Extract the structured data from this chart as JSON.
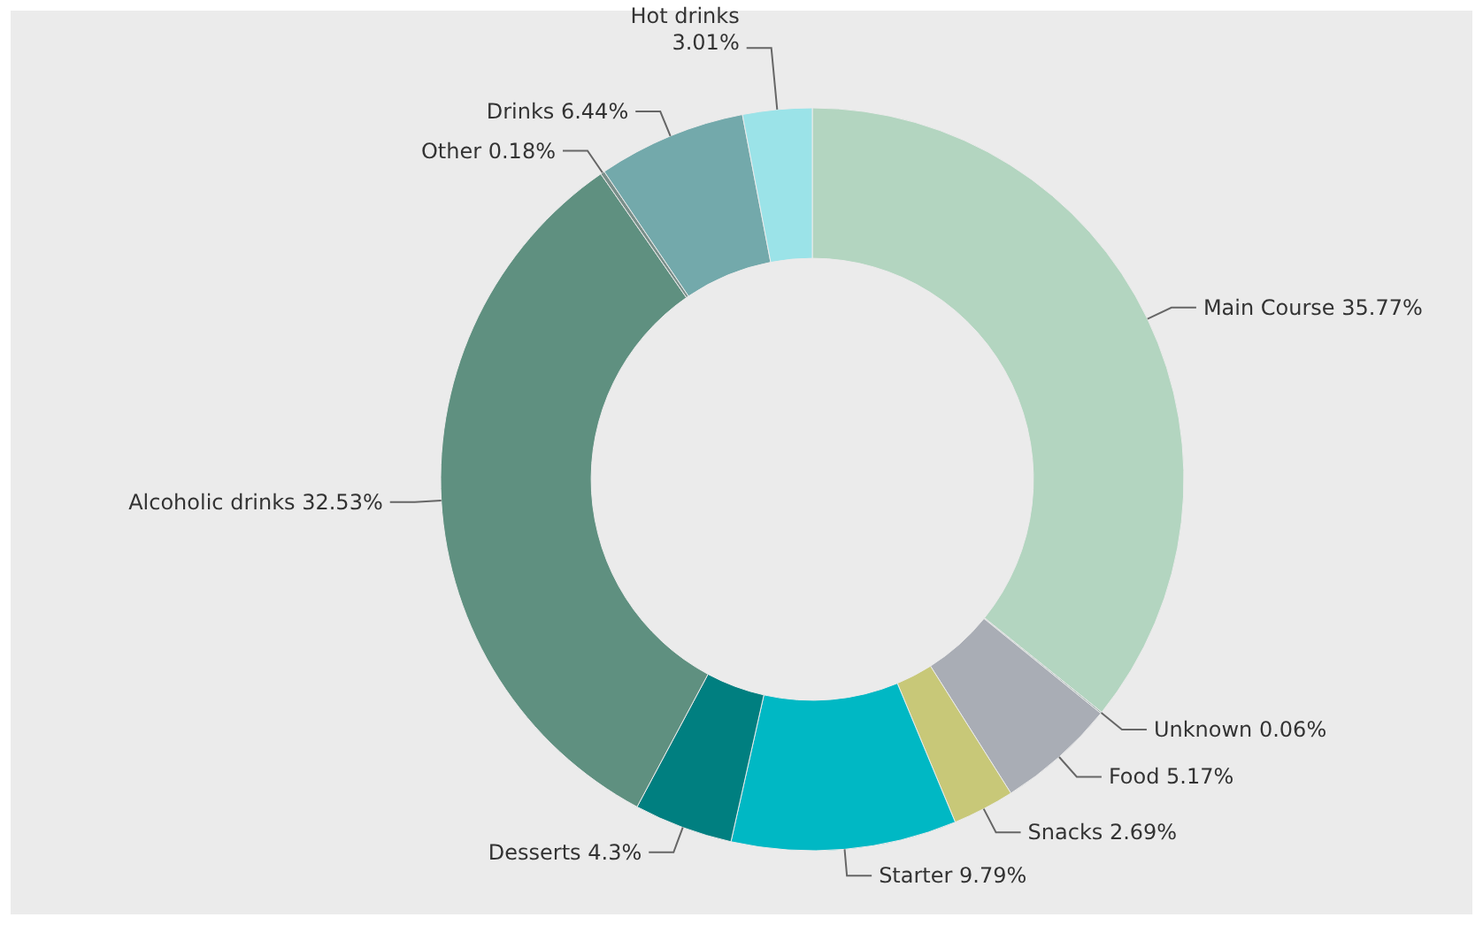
{
  "chart_data": {
    "type": "donut",
    "categories": [
      "Main Course",
      "Unknown",
      "Food",
      "Snacks",
      "Starter",
      "Desserts",
      "Alcoholic drinks",
      "Other",
      "Drinks",
      "Hot drinks"
    ],
    "values": [
      35.77,
      0.06,
      5.17,
      2.69,
      9.79,
      4.3,
      32.53,
      0.18,
      6.44,
      3.01
    ],
    "value_labels": [
      "35.77%",
      "0.06%",
      "5.17%",
      "2.69%",
      "9.79%",
      "4.3%",
      "32.53%",
      "0.18%",
      "6.44%",
      "3.01%"
    ],
    "colors": [
      "#b3d5c0",
      "#8fa8a0",
      "#a9adb5",
      "#c8c878",
      "#00b8c4",
      "#007f80",
      "#5f9080",
      "#7a8f8a",
      "#73a9ab",
      "#9be3e8"
    ]
  }
}
